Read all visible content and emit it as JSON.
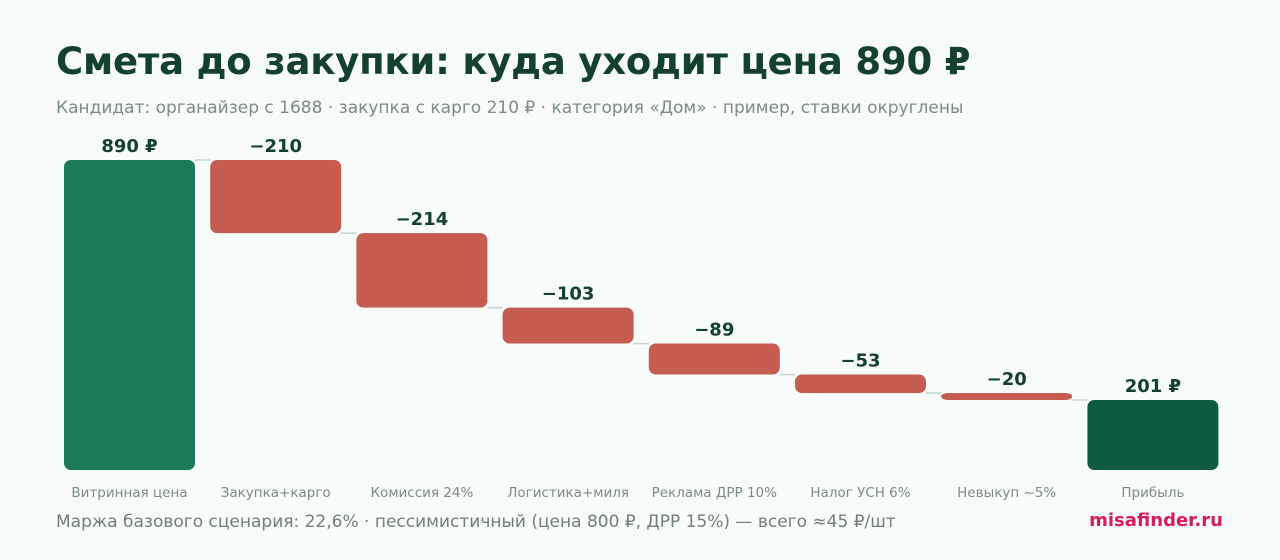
{
  "title": "Смета до закупки: куда уходит цена 890 ₽",
  "subtitle": "Кандидат: органайзер с 1688 · закупка с карго 210 ₽ · категория «Дом» · пример, ставки округлены",
  "footer_note": "Маржа базового сценария: 22,6% · пессимистичный (цена 800 ₽, ДРР 15%) — всего ≈45 ₽/шт",
  "brand": "misafinder.ru",
  "colors": {
    "total_start": "#1a7a55",
    "decrease": "#c65b50",
    "total_end": "#0d5c3f",
    "connector": "#c9d4cf"
  },
  "chart_data": {
    "type": "waterfall",
    "ylim": [
      0,
      890
    ],
    "grid": false,
    "bars": [
      {
        "category": "Витринная цена",
        "kind": "total",
        "value": 890,
        "label": "890 ₽"
      },
      {
        "category": "Закупка+карго",
        "kind": "decrease",
        "value": -210,
        "label": "−210"
      },
      {
        "category": "Комиссия 24%",
        "kind": "decrease",
        "value": -214,
        "label": "−214"
      },
      {
        "category": "Логистика+миля",
        "kind": "decrease",
        "value": -103,
        "label": "−103"
      },
      {
        "category": "Реклама ДРР 10%",
        "kind": "decrease",
        "value": -89,
        "label": "−89"
      },
      {
        "category": "Налог УСН 6%",
        "kind": "decrease",
        "value": -53,
        "label": "−53"
      },
      {
        "category": "Невыкуп ~5%",
        "kind": "decrease",
        "value": -20,
        "label": "−20"
      },
      {
        "category": "Прибыль",
        "kind": "total",
        "value": 201,
        "label": "201 ₽"
      }
    ]
  }
}
